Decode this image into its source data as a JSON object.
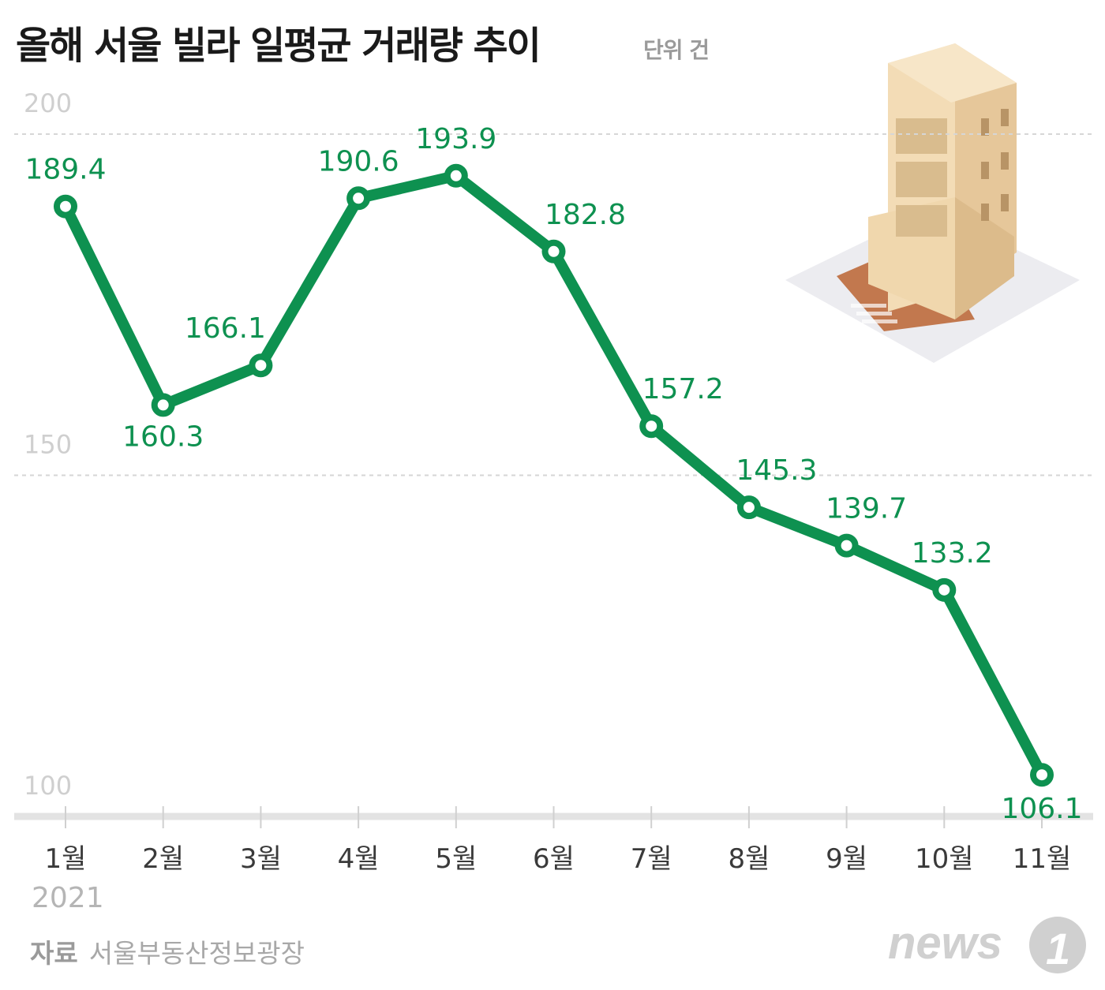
{
  "title": "올해 서울 빌라 일평균 거래량 추이",
  "unit": "단위 건",
  "year": "2021",
  "source_label": "자료",
  "source": "서울부동산정보광장",
  "logo": "news1",
  "colors": {
    "line": "#0e9150",
    "label": "#0e9150",
    "grid": "#d6d6d6",
    "axis": "#e3e3e3",
    "tick_label": "#cfcfcf"
  },
  "chart_data": {
    "type": "line",
    "title": "올해 서울 빌라 일평균 거래량 추이",
    "xlabel": "",
    "ylabel": "단위 건",
    "categories": [
      "1월",
      "2월",
      "3월",
      "4월",
      "5월",
      "6월",
      "7월",
      "8월",
      "9월",
      "10월",
      "11월"
    ],
    "series": [
      {
        "name": "일평균 거래량",
        "values": [
          189.4,
          160.3,
          166.1,
          190.6,
          193.9,
          182.8,
          157.2,
          145.3,
          139.7,
          133.2,
          106.1
        ]
      }
    ],
    "value_labels": [
      "189.4",
      "160.3",
      "166.1",
      "190.6",
      "193.9",
      "182.8",
      "157.2",
      "145.3",
      "139.7",
      "133.2",
      "106.1"
    ],
    "yticks": [
      100,
      150,
      200
    ],
    "ytick_labels": [
      "100",
      "150",
      "200"
    ],
    "ylim": [
      100,
      200
    ],
    "grid": true
  }
}
